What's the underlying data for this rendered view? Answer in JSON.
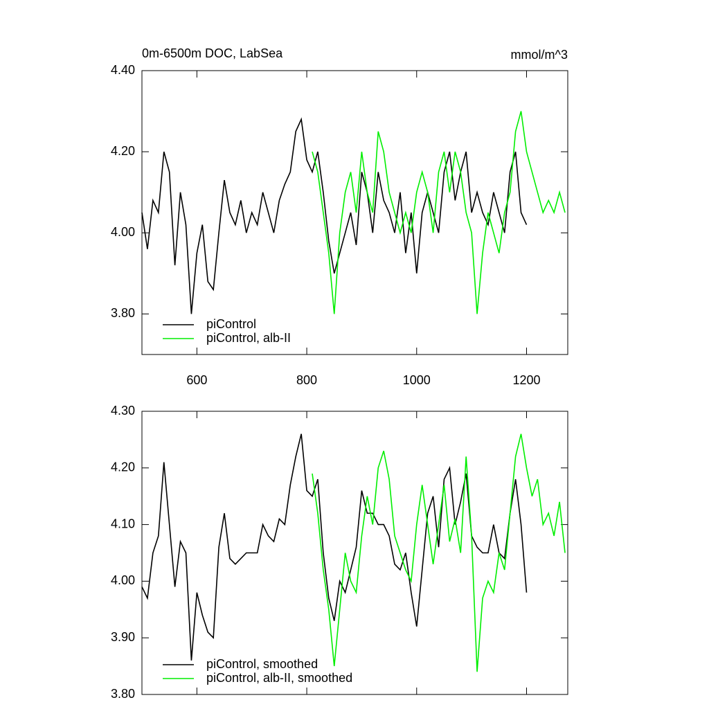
{
  "chart_data": [
    {
      "type": "line",
      "title": "0m-6500m DOC, LabSea",
      "units": "mmol/m^3",
      "xlim": [
        500,
        1275
      ],
      "xticks": [
        600,
        800,
        1000,
        1200
      ],
      "xtick_labels": true,
      "ylim": [
        3.7,
        4.4
      ],
      "yticks": [
        {
          "value": 3.8,
          "label": "3.80"
        },
        {
          "value": 4.0,
          "label": "4.00"
        },
        {
          "value": 4.2,
          "label": "4.20"
        },
        {
          "value": 4.4,
          "label": "4.40"
        }
      ],
      "legend": "lower left",
      "series": [
        {
          "name": "piControl",
          "color": "#000000",
          "x": [
            500,
            510,
            520,
            530,
            540,
            550,
            560,
            570,
            580,
            590,
            600,
            610,
            620,
            630,
            640,
            650,
            660,
            670,
            680,
            690,
            700,
            710,
            720,
            730,
            740,
            750,
            760,
            770,
            780,
            790,
            800,
            810,
            820,
            830,
            840,
            850,
            860,
            870,
            880,
            890,
            900,
            910,
            920,
            930,
            940,
            950,
            960,
            970,
            980,
            990,
            1000,
            1010,
            1020,
            1030,
            1040,
            1050,
            1060,
            1070,
            1080,
            1090,
            1100,
            1110,
            1120,
            1130,
            1140,
            1150,
            1160,
            1170,
            1180,
            1190,
            1200
          ],
          "values": [
            4.05,
            3.96,
            4.08,
            4.05,
            4.2,
            4.15,
            3.92,
            4.1,
            4.02,
            3.8,
            3.95,
            4.02,
            3.88,
            3.86,
            4.0,
            4.13,
            4.05,
            4.02,
            4.08,
            4.0,
            4.05,
            4.02,
            4.1,
            4.05,
            4.0,
            4.08,
            4.12,
            4.15,
            4.25,
            4.28,
            4.18,
            4.15,
            4.2,
            4.1,
            3.98,
            3.9,
            3.95,
            4.0,
            4.05,
            3.97,
            4.15,
            4.1,
            4.0,
            4.15,
            4.08,
            4.05,
            4.0,
            4.1,
            3.95,
            4.05,
            3.9,
            4.05,
            4.1,
            4.05,
            4.0,
            4.15,
            4.2,
            4.08,
            4.15,
            4.2,
            4.05,
            4.1,
            4.05,
            4.02,
            4.1,
            4.05,
            4.0,
            4.15,
            4.2,
            4.05,
            4.02
          ]
        },
        {
          "name": "piControl, alb-II",
          "color": "#00ee00",
          "x": [
            810,
            820,
            830,
            840,
            850,
            860,
            870,
            880,
            890,
            900,
            910,
            920,
            930,
            940,
            950,
            960,
            970,
            980,
            990,
            1000,
            1010,
            1020,
            1030,
            1040,
            1050,
            1060,
            1070,
            1080,
            1090,
            1100,
            1110,
            1120,
            1130,
            1140,
            1150,
            1160,
            1170,
            1180,
            1190,
            1200,
            1210,
            1220,
            1230,
            1240,
            1250,
            1260,
            1270
          ],
          "values": [
            4.2,
            4.15,
            4.05,
            3.95,
            3.8,
            4.0,
            4.1,
            4.15,
            4.05,
            4.2,
            4.1,
            4.05,
            4.25,
            4.2,
            4.1,
            4.05,
            4.0,
            4.05,
            4.0,
            4.1,
            4.15,
            4.1,
            4.0,
            4.15,
            4.2,
            4.1,
            4.2,
            4.15,
            4.05,
            4.0,
            3.8,
            3.95,
            4.05,
            4.0,
            3.95,
            4.05,
            4.1,
            4.25,
            4.3,
            4.2,
            4.15,
            4.1,
            4.05,
            4.08,
            4.05,
            4.1,
            4.05
          ]
        }
      ]
    },
    {
      "type": "line",
      "xlim": [
        500,
        1275
      ],
      "xticks": [
        600,
        800,
        1000,
        1200
      ],
      "xtick_labels": false,
      "ylim": [
        3.8,
        4.3
      ],
      "yticks": [
        {
          "value": 3.8,
          "label": "3.80"
        },
        {
          "value": 3.9,
          "label": "3.90"
        },
        {
          "value": 4.0,
          "label": "4.00"
        },
        {
          "value": 4.1,
          "label": "4.10"
        },
        {
          "value": 4.2,
          "label": "4.20"
        },
        {
          "value": 4.3,
          "label": "4.30"
        }
      ],
      "legend": "lower left",
      "series": [
        {
          "name": "piControl, smoothed",
          "color": "#000000",
          "x": [
            500,
            510,
            520,
            530,
            540,
            550,
            560,
            570,
            580,
            590,
            600,
            610,
            620,
            630,
            640,
            650,
            660,
            670,
            680,
            690,
            700,
            710,
            720,
            730,
            740,
            750,
            760,
            770,
            780,
            790,
            800,
            810,
            820,
            830,
            840,
            850,
            860,
            870,
            880,
            890,
            900,
            910,
            920,
            930,
            940,
            950,
            960,
            970,
            980,
            990,
            1000,
            1010,
            1020,
            1030,
            1040,
            1050,
            1060,
            1070,
            1080,
            1090,
            1100,
            1110,
            1120,
            1130,
            1140,
            1150,
            1160,
            1170,
            1180,
            1190,
            1200
          ],
          "values": [
            3.99,
            3.97,
            4.05,
            4.08,
            4.21,
            4.1,
            3.99,
            4.07,
            4.05,
            3.86,
            3.98,
            3.94,
            3.91,
            3.9,
            4.06,
            4.12,
            4.04,
            4.03,
            4.04,
            4.05,
            4.05,
            4.05,
            4.1,
            4.08,
            4.07,
            4.11,
            4.1,
            4.17,
            4.22,
            4.26,
            4.16,
            4.15,
            4.18,
            4.05,
            3.97,
            3.93,
            4.0,
            3.98,
            4.02,
            4.06,
            4.16,
            4.12,
            4.12,
            4.1,
            4.1,
            4.08,
            4.03,
            4.02,
            4.05,
            3.98,
            3.92,
            4.02,
            4.12,
            4.15,
            4.06,
            4.18,
            4.2,
            4.1,
            4.14,
            4.19,
            4.08,
            4.06,
            4.05,
            4.05,
            4.1,
            4.05,
            4.04,
            4.12,
            4.18,
            4.1,
            3.98
          ]
        },
        {
          "name": "piControl, alb-II, smoothed",
          "color": "#00ee00",
          "x": [
            810,
            820,
            830,
            840,
            850,
            860,
            870,
            880,
            890,
            900,
            910,
            920,
            930,
            940,
            950,
            960,
            970,
            980,
            990,
            1000,
            1010,
            1020,
            1030,
            1040,
            1050,
            1060,
            1070,
            1080,
            1090,
            1100,
            1110,
            1120,
            1130,
            1140,
            1150,
            1160,
            1170,
            1180,
            1190,
            1200,
            1210,
            1220,
            1230,
            1240,
            1250,
            1260,
            1270
          ],
          "values": [
            4.19,
            4.12,
            4.02,
            3.95,
            3.85,
            3.95,
            4.05,
            4.0,
            3.98,
            4.08,
            4.15,
            4.1,
            4.2,
            4.23,
            4.18,
            4.08,
            4.05,
            4.02,
            4.0,
            4.1,
            4.17,
            4.1,
            4.03,
            4.1,
            4.17,
            4.07,
            4.11,
            4.05,
            4.22,
            4.08,
            3.84,
            3.97,
            4.0,
            3.98,
            4.05,
            4.02,
            4.12,
            4.22,
            4.26,
            4.2,
            4.15,
            4.18,
            4.1,
            4.12,
            4.08,
            4.14,
            4.05
          ]
        }
      ]
    }
  ]
}
